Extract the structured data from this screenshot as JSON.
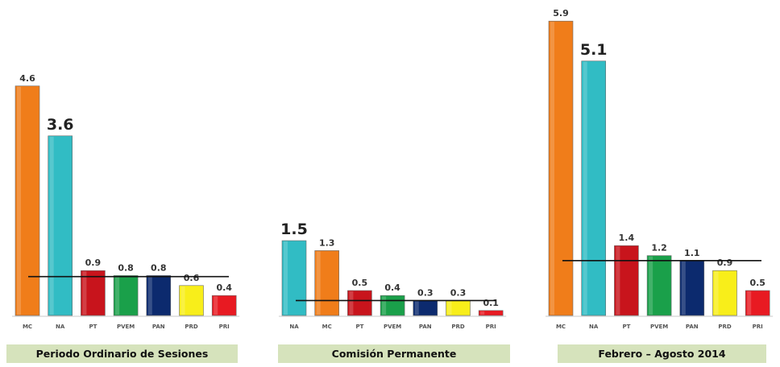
{
  "chart_data": [
    {
      "type": "bar",
      "title": "Periodo Ordinario de Sesiones",
      "categories": [
        "MC",
        "NA",
        "PT",
        "PVEM",
        "PAN",
        "PRD",
        "PRI"
      ],
      "values": [
        4.6,
        3.6,
        0.9,
        0.8,
        0.8,
        0.6,
        0.4
      ],
      "value_labels": [
        "4.6",
        "3.6",
        "0.9",
        "0.8",
        "0.8",
        "0.6",
        "0.4"
      ],
      "colors": [
        "#f07d1a",
        "#31bcc4",
        "#c8141c",
        "#1aa04a",
        "#0c2a6e",
        "#f8ee1a",
        "#e81a22"
      ],
      "reference_line": 0.78
    },
    {
      "type": "bar",
      "title": "Comisión Permanente",
      "categories": [
        "NA",
        "MC",
        "PT",
        "PVEM",
        "PAN",
        "PRD",
        "PRI"
      ],
      "values": [
        1.5,
        1.3,
        0.5,
        0.4,
        0.3,
        0.3,
        0.1
      ],
      "value_labels": [
        "1.5",
        "1.3",
        "0.5",
        "0.4",
        "0.3",
        "0.3",
        "0.1"
      ],
      "colors": [
        "#31bcc4",
        "#f07d1a",
        "#c8141c",
        "#1aa04a",
        "#0c2a6e",
        "#f8ee1a",
        "#e81a22"
      ],
      "reference_line": 0.3
    },
    {
      "type": "bar",
      "title": "Febrero – Agosto 2014",
      "categories": [
        "MC",
        "NA",
        "PT",
        "PVEM",
        "PAN",
        "PRD",
        "PRI"
      ],
      "values": [
        5.9,
        5.1,
        1.4,
        1.2,
        1.1,
        0.9,
        0.5
      ],
      "value_labels": [
        "5.9",
        "5.1",
        "1.4",
        "1.2",
        "1.1",
        "0.9",
        "0.5"
      ],
      "colors": [
        "#f07d1a",
        "#31bcc4",
        "#c8141c",
        "#1aa04a",
        "#0c2a6e",
        "#f8ee1a",
        "#e81a22"
      ],
      "reference_line": 1.1
    }
  ]
}
